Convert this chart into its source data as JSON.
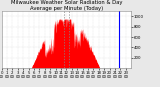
{
  "title": "Milwaukee Weather Solar Radiation & Day Average per Minute (Today)",
  "bg_color": "#e8e8e8",
  "plot_bg": "#ffffff",
  "bar_color": "#ff0000",
  "line_color": "#0000ff",
  "grid_color": "#aaaaaa",
  "dashed_line_color": "#888888",
  "ylim": [
    0,
    1100
  ],
  "xlim": [
    0,
    1440
  ],
  "num_points": 1440,
  "peak_value": 950,
  "current_time": 1310,
  "dashed_lines": [
    690,
    750
  ],
  "ytick_values": [
    200,
    400,
    600,
    800,
    1000
  ],
  "title_fontsize": 3.8,
  "tick_fontsize": 2.8,
  "axis_label_color": "#000000",
  "sunrise": 330,
  "sunset": 1090,
  "seed": 42
}
